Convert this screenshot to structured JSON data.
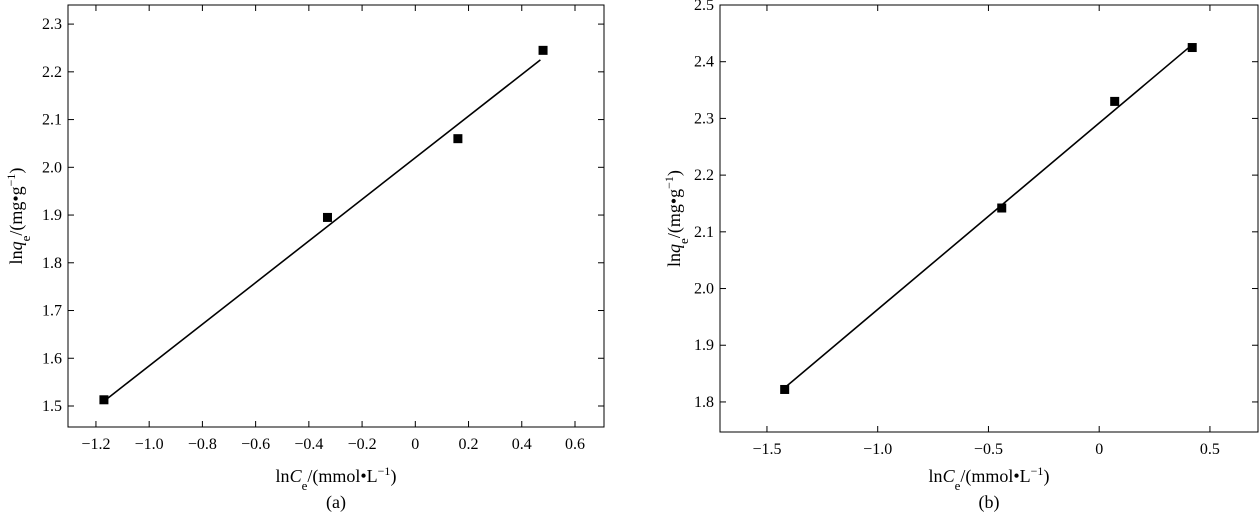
{
  "chart_data": [
    {
      "type": "scatter",
      "xlabel": [
        {
          "text": "ln"
        },
        {
          "text": "C",
          "italic": true
        },
        {
          "text": "e",
          "sub": true
        },
        {
          "text": "/(mmol•L"
        },
        {
          "text": "−1",
          "sup": true
        },
        {
          "text": ")"
        }
      ],
      "ylabel": [
        {
          "text": "ln"
        },
        {
          "text": "q",
          "italic": true
        },
        {
          "text": "e",
          "sub": true
        },
        {
          "text": "/(mg•g"
        },
        {
          "text": "−1",
          "sup": true
        },
        {
          "text": ")"
        }
      ],
      "caption": "(a)",
      "xlim": [
        -1.305,
        0.709
      ],
      "ylim": [
        1.456,
        2.34
      ],
      "xticks": [
        {
          "value": -1.2,
          "label": "−1.2"
        },
        {
          "value": -1,
          "label": "−1.0"
        },
        {
          "value": -0.8,
          "label": "−0.8"
        },
        {
          "value": -0.6,
          "label": "−0.6"
        },
        {
          "value": -0.4,
          "label": "−0.4"
        },
        {
          "value": -0.2,
          "label": "−0.2"
        },
        0,
        0.2,
        0.4,
        0.6
      ],
      "yticks": [
        1.5,
        1.6,
        1.7,
        1.8,
        1.9,
        {
          "value": 2,
          "label": "2.0"
        },
        2.1,
        2.2,
        2.3
      ],
      "series": [
        {
          "style": "marker",
          "color": "#000000",
          "x": [
            -1.17,
            -0.33,
            0.16,
            0.48
          ],
          "values": [
            1.513,
            1.895,
            2.06,
            2.245
          ]
        },
        {
          "style": "line",
          "color": "#000000",
          "x": [
            -1.17,
            0.47
          ],
          "values": [
            1.51,
            2.225
          ]
        }
      ]
    },
    {
      "type": "scatter",
      "xlabel": [
        {
          "text": "ln"
        },
        {
          "text": "C",
          "italic": true
        },
        {
          "text": "e",
          "sub": true
        },
        {
          "text": "/(mmol•L"
        },
        {
          "text": "−1",
          "sup": true
        },
        {
          "text": ")"
        }
      ],
      "ylabel": [
        {
          "text": "ln"
        },
        {
          "text": "q",
          "italic": true
        },
        {
          "text": "e",
          "sub": true
        },
        {
          "text": "/(mg•g"
        },
        {
          "text": "−1",
          "sup": true
        },
        {
          "text": ")"
        }
      ],
      "caption": "(b)",
      "xlim": [
        -1.712,
        0.717
      ],
      "ylim": [
        1.747,
        2.5
      ],
      "xticks": [
        {
          "value": -1.5,
          "label": "−1.5"
        },
        {
          "value": -1,
          "label": "−1.0"
        },
        {
          "value": -0.5,
          "label": "−0.5"
        },
        0,
        0.5
      ],
      "yticks": [
        1.8,
        1.9,
        {
          "value": 2,
          "label": "2.0"
        },
        2.1,
        2.2,
        2.3,
        2.4,
        2.5
      ],
      "series": [
        {
          "style": "marker",
          "color": "#000000",
          "x": [
            -1.42,
            -0.44,
            0.07,
            0.42
          ],
          "values": [
            1.822,
            2.142,
            2.33,
            2.425
          ]
        },
        {
          "style": "line",
          "color": "#000000",
          "x": [
            -1.42,
            0.42
          ],
          "values": [
            1.825,
            2.43
          ]
        }
      ]
    }
  ]
}
